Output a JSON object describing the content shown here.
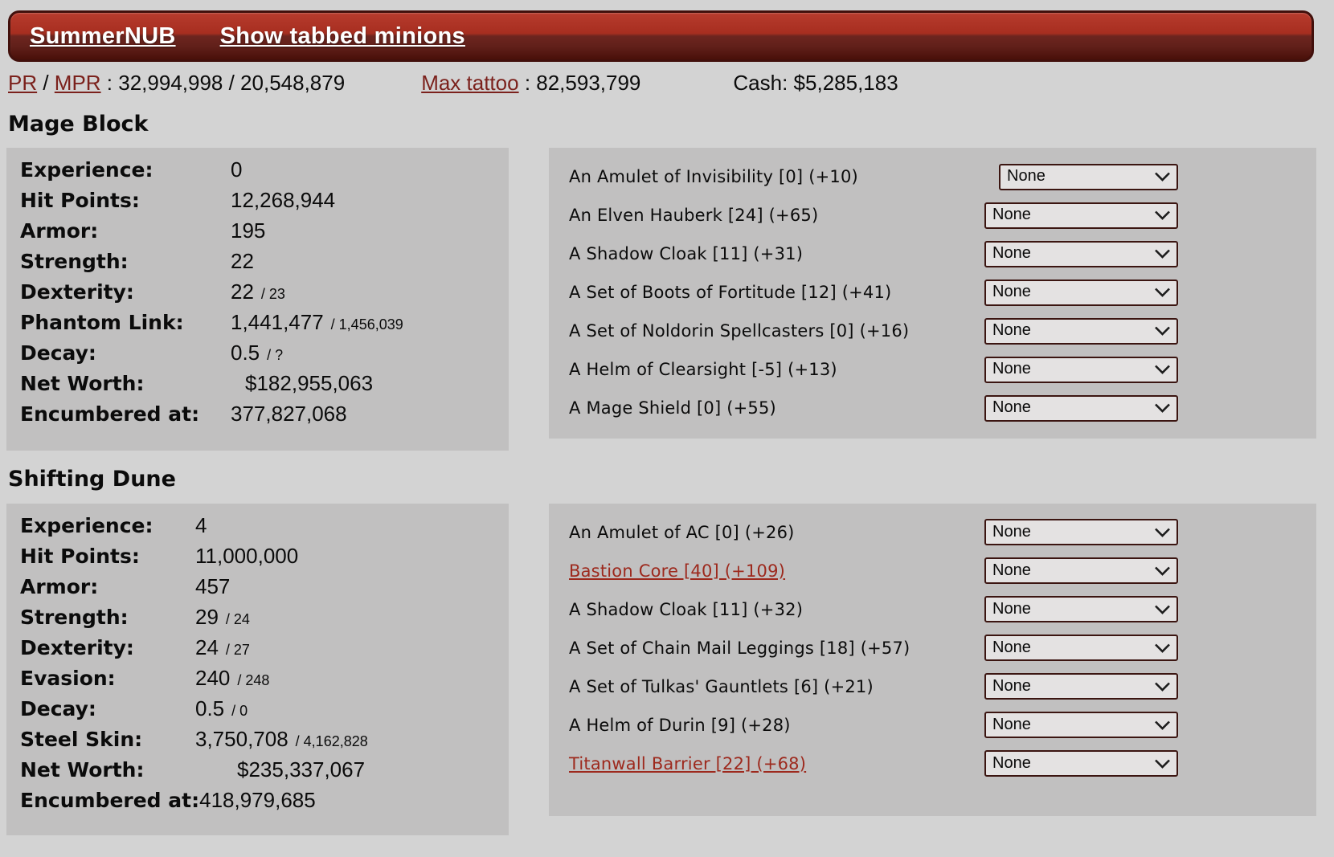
{
  "header": {
    "player_link": "SummerNUB",
    "tabbed_link": "Show tabbed minions"
  },
  "status_bar": {
    "pr_label": "PR",
    "separator": " / ",
    "mpr_label": "MPR",
    "pr_mpr_value": " : 32,994,998 / 20,548,879",
    "max_tattoo_label": "Max tattoo",
    "max_tattoo_value": " : 82,593,799",
    "cash_text": "Cash: $5,285,183"
  },
  "colors": {
    "bar_red_top": "#a72e20",
    "bar_red_bottom": "#491009",
    "bar_border": "#42100c",
    "panel_gray": "#c1c0c0",
    "page_bg": "#d3d3d3",
    "status_link": "#7b211c",
    "item_link": "#9d291d",
    "select_bg": "#e4e2e2",
    "select_border": "#3b1511"
  },
  "select_default": "None",
  "minions": [
    {
      "name": "Mage Block",
      "stats": [
        {
          "label": "Experience:",
          "value": "0"
        },
        {
          "label": "Hit Points:",
          "value": "12,268,944"
        },
        {
          "label": "Armor:",
          "value": "195"
        },
        {
          "label": "Strength:",
          "value": "22"
        },
        {
          "label": "Dexterity:",
          "value": "22",
          "secondary": "/ 23"
        },
        {
          "label": "Phantom Link:",
          "value": "1,441,477",
          "secondary": "/ 1,456,039"
        },
        {
          "label": "Decay:",
          "value": "0.5",
          "secondary": "/ ?"
        },
        {
          "label": "Net Worth:",
          "value": "$182,955,063",
          "indent": true
        },
        {
          "label": "Encumbered at:",
          "value": "377,827,068"
        }
      ],
      "items": [
        {
          "text": "An Amulet of Invisibility [0] (+10)",
          "link": false,
          "select": "None"
        },
        {
          "text": "An Elven Hauberk [24] (+65)",
          "link": false,
          "select": "None"
        },
        {
          "text": "A Shadow Cloak [11] (+31)",
          "link": false,
          "select": "None"
        },
        {
          "text": "A Set of Boots of Fortitude [12] (+41)",
          "link": false,
          "select": "None"
        },
        {
          "text": "A Set of Noldorin Spellcasters [0] (+16)",
          "link": false,
          "select": "None"
        },
        {
          "text": "A Helm of Clearsight [-5] (+13)",
          "link": false,
          "select": "None"
        },
        {
          "text": "A Mage Shield [0] (+55)",
          "link": false,
          "select": "None"
        }
      ]
    },
    {
      "name": "Shifting Dune",
      "stats": [
        {
          "label": "Experience:",
          "value": "4"
        },
        {
          "label": "Hit Points:",
          "value": "11,000,000"
        },
        {
          "label": "Armor:",
          "value": "457"
        },
        {
          "label": "Strength:",
          "value": "29",
          "secondary": "/ 24"
        },
        {
          "label": "Dexterity:",
          "value": "24",
          "secondary": "/ 27"
        },
        {
          "label": "Evasion:",
          "value": "240",
          "secondary": "/ 248"
        },
        {
          "label": "Decay:",
          "value": "0.5",
          "secondary": "/ 0"
        },
        {
          "label": "Steel Skin:",
          "value": "3,750,708",
          "secondary": "/ 4,162,828"
        },
        {
          "label": "Net Worth:",
          "value": "$235,337,067",
          "indent": true
        },
        {
          "label": "Encumbered at:",
          "value": "418,979,685"
        }
      ],
      "items": [
        {
          "text": "An Amulet of AC [0] (+26)",
          "link": false,
          "select": "None"
        },
        {
          "text": "Bastion Core [40] (+109)",
          "link": true,
          "select": "None"
        },
        {
          "text": "A Shadow Cloak [11] (+32)",
          "link": false,
          "select": "None"
        },
        {
          "text": "A Set of Chain Mail Leggings [18] (+57)",
          "link": false,
          "select": "None"
        },
        {
          "text": "A Set of Tulkas' Gauntlets [6] (+21)",
          "link": false,
          "select": "None"
        },
        {
          "text": "A Helm of Durin [9] (+28)",
          "link": false,
          "select": "None"
        },
        {
          "text": "Titanwall Barrier [22] (+68)",
          "link": true,
          "select": "None"
        }
      ]
    }
  ]
}
